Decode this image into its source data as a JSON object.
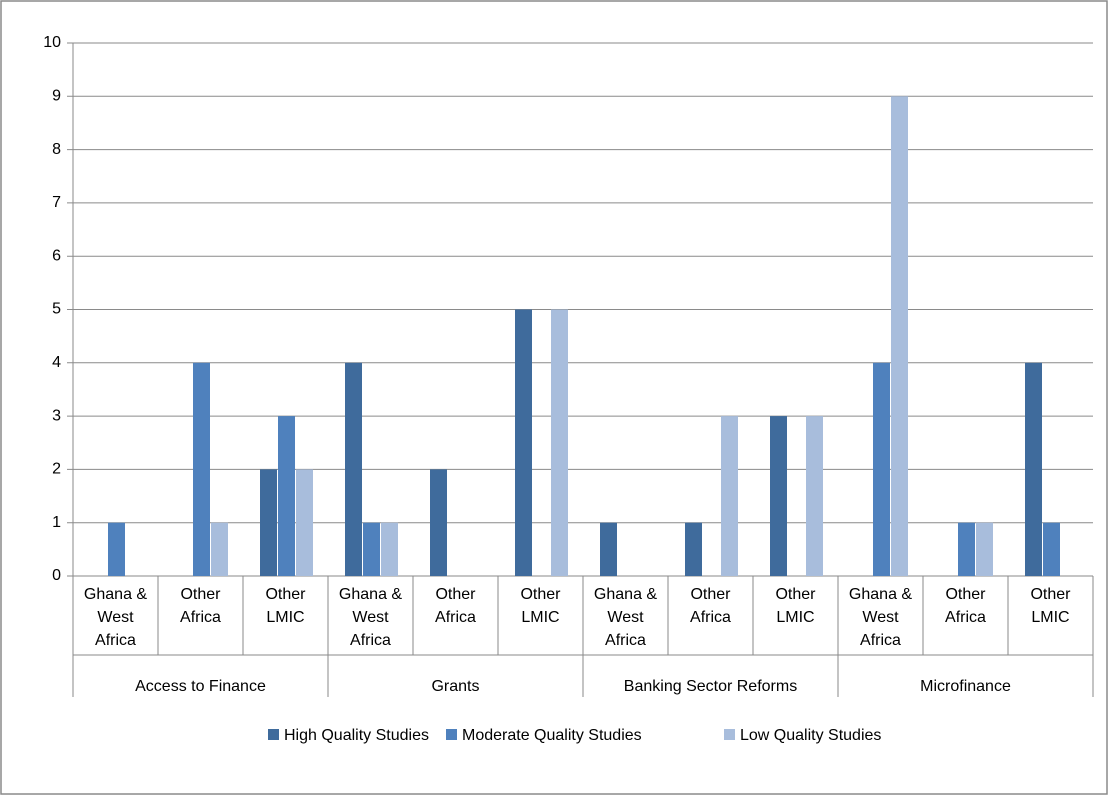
{
  "chart_data": {
    "type": "bar",
    "groups": [
      {
        "name": "Access to Finance",
        "categories": [
          "Ghana & West Africa",
          "Other Africa",
          "Other LMIC"
        ]
      },
      {
        "name": "Grants",
        "categories": [
          "Ghana & West Africa",
          "Other Africa",
          "Other LMIC"
        ]
      },
      {
        "name": "Banking Sector Reforms",
        "categories": [
          "Ghana & West Africa",
          "Other Africa",
          "Other LMIC"
        ]
      },
      {
        "name": "Microfinance",
        "categories": [
          "Ghana & West Africa",
          "Other Africa",
          "Other LMIC"
        ]
      }
    ],
    "series": [
      {
        "name": "High Quality Studies",
        "color": "#3f6b9c",
        "values": [
          0,
          0,
          2,
          4,
          2,
          5,
          1,
          1,
          3,
          0,
          0,
          4
        ]
      },
      {
        "name": "Moderate Quality Studies",
        "color": "#4f81bd",
        "values": [
          1,
          4,
          3,
          1,
          0,
          0,
          0,
          0,
          0,
          4,
          1,
          1
        ]
      },
      {
        "name": "Low Quality Studies",
        "color": "#a8bddc",
        "values": [
          0,
          1,
          2,
          1,
          0,
          5,
          0,
          3,
          3,
          9,
          1,
          0
        ]
      }
    ],
    "ylim": [
      0,
      10
    ],
    "yticks": [
      0,
      1,
      2,
      3,
      4,
      5,
      6,
      7,
      8,
      9,
      10
    ],
    "grid": true,
    "legend": "bottom"
  }
}
